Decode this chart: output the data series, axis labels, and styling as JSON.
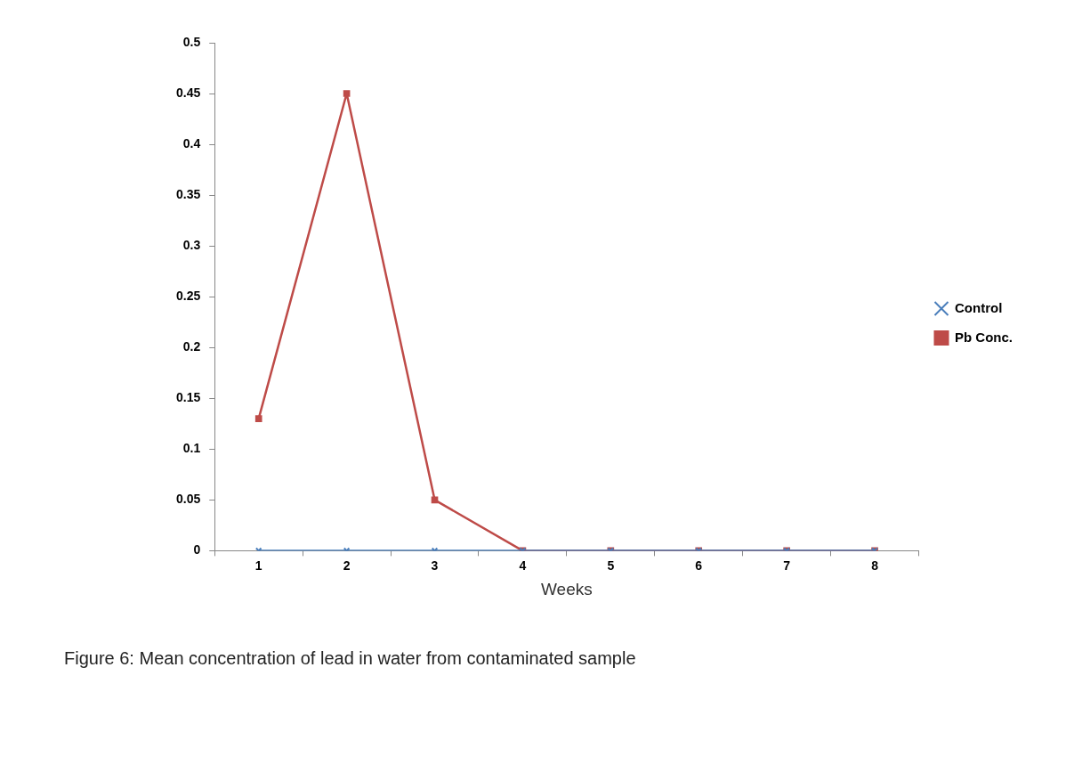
{
  "chart_data": {
    "type": "line",
    "xlabel": "Weeks",
    "categories": [
      "1",
      "2",
      "3",
      "4",
      "5",
      "6",
      "7",
      "8"
    ],
    "series": [
      {
        "name": "Control",
        "color": "#4a7ebb",
        "marker": "cross",
        "values": [
          0,
          0,
          0,
          0,
          0,
          0,
          0,
          0
        ]
      },
      {
        "name": "Pb Conc.",
        "color": "#be4b48",
        "marker": "square",
        "values": [
          0.13,
          0.45,
          0.05,
          0,
          0,
          0,
          0,
          0
        ]
      }
    ],
    "ylim": [
      0,
      0.5
    ],
    "yticks": [
      0,
      0.05,
      0.1,
      0.15,
      0.2,
      0.25,
      0.3,
      0.35,
      0.4,
      0.45,
      0.5
    ],
    "grid": false,
    "legend": "right",
    "line_style": "solid",
    "annotations": [
      "Figure 6:  Mean concentration of lead in water from contaminated sample"
    ]
  }
}
